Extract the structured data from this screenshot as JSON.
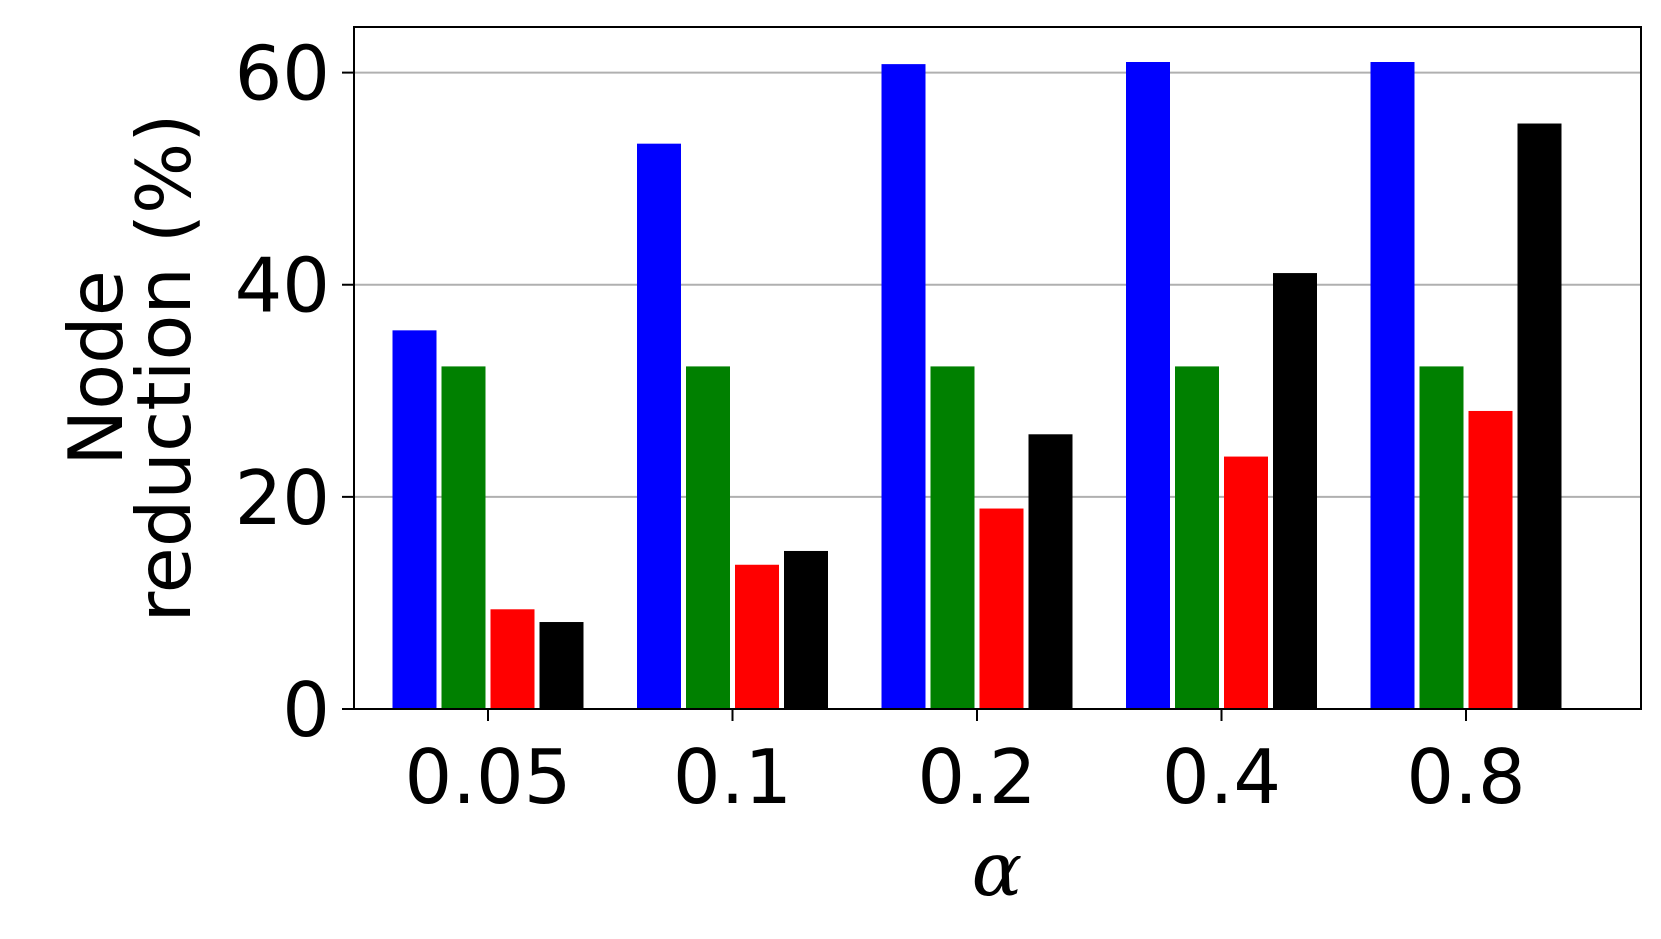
{
  "chart_data": {
    "type": "bar",
    "xlabel": "α",
    "ylabel_lines": [
      "Node",
      "reduction (%)"
    ],
    "categories": [
      "0.05",
      "0.1",
      "0.2",
      "0.4",
      "0.8"
    ],
    "series": [
      {
        "color": "#0000ff",
        "values": [
          35.7,
          53.3,
          60.8,
          61.0,
          61.0
        ]
      },
      {
        "color": "#008000",
        "values": [
          32.3,
          32.3,
          32.3,
          32.3,
          32.3
        ]
      },
      {
        "color": "#ff0000",
        "values": [
          9.4,
          13.6,
          18.9,
          23.8,
          28.1
        ]
      },
      {
        "color": "#000000",
        "values": [
          8.2,
          14.9,
          25.9,
          41.1,
          55.2
        ]
      }
    ],
    "ylim": [
      0,
      64.3
    ],
    "yticks": [
      0,
      20,
      40,
      60
    ],
    "ytick_labels": [
      "0",
      "20",
      "40",
      "60"
    ],
    "grid": "y",
    "legend": "none"
  }
}
